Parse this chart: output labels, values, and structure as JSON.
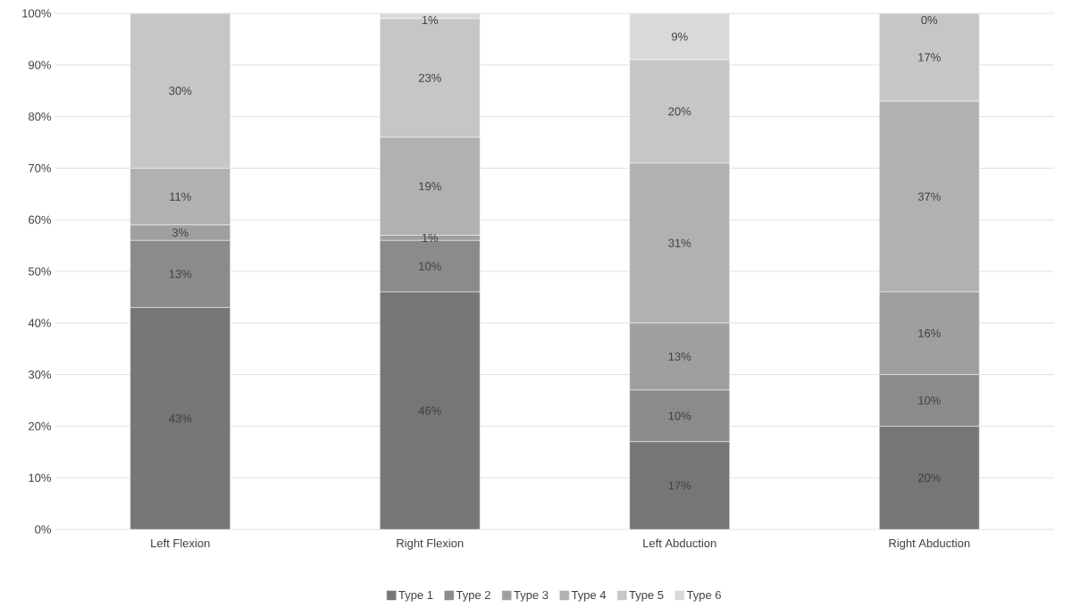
{
  "chart_data": {
    "type": "bar",
    "stacked": true,
    "categories": [
      "Left Flexion",
      "Right Flexion",
      "Left Abduction",
      "Right Abduction"
    ],
    "series": [
      {
        "name": "Type 1",
        "color": "#767676",
        "values": [
          43,
          46,
          17,
          20
        ],
        "value_labels": [
          "43%",
          "46%",
          "17%",
          "20%"
        ]
      },
      {
        "name": "Type 2",
        "color": "#8b8b8b",
        "values": [
          13,
          10,
          10,
          10
        ],
        "value_labels": [
          "13%",
          "10%",
          "10%",
          "10%"
        ]
      },
      {
        "name": "Type 3",
        "color": "#9f9f9f",
        "values": [
          3,
          1,
          13,
          16
        ],
        "value_labels": [
          "3%",
          "1%",
          "13%",
          "16%"
        ]
      },
      {
        "name": "Type 4",
        "color": "#b1b1b1",
        "values": [
          11,
          19,
          31,
          37
        ],
        "value_labels": [
          "11%",
          "19%",
          "31%",
          "37%"
        ]
      },
      {
        "name": "Type 5",
        "color": "#c6c6c6",
        "values": [
          30,
          23,
          20,
          17
        ],
        "value_labels": [
          "30%",
          "23%",
          "20%",
          "17%"
        ]
      },
      {
        "name": "Type 6",
        "color": "#d9d9d9",
        "values": [
          0,
          1,
          9,
          0
        ],
        "value_labels": [
          null,
          "1%",
          "9%",
          "0%"
        ]
      }
    ],
    "ylim": [
      0,
      100
    ],
    "yticks": [
      {
        "value": 0,
        "label": "0%"
      },
      {
        "value": 10,
        "label": "10%"
      },
      {
        "value": 20,
        "label": "20%"
      },
      {
        "value": 30,
        "label": "30%"
      },
      {
        "value": 40,
        "label": "40%"
      },
      {
        "value": 50,
        "label": "50%"
      },
      {
        "value": 60,
        "label": "60%"
      },
      {
        "value": 70,
        "label": "70%"
      },
      {
        "value": 80,
        "label": "80%"
      },
      {
        "value": 90,
        "label": "90%"
      },
      {
        "value": 100,
        "label": "100%"
      }
    ],
    "grid": "y",
    "legend": "bottom"
  }
}
